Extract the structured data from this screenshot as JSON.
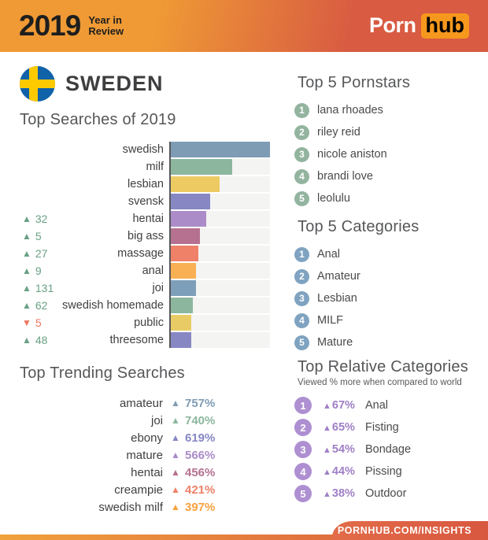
{
  "colors": {
    "header-left": "#ef9a35",
    "header-right": "#d85b42",
    "hub-box": "#f6981d",
    "flag-blue": "#1062a9",
    "flag-yellow": "#fdca00",
    "heading": "#565759",
    "label": "#3f3f41",
    "track": "#f4f4f3",
    "up": "#69a184",
    "down": "#ef745c",
    "rel-accent": "#9f7fc6",
    "strip-left": "#f0a23c",
    "strip-right": "#d8573f"
  },
  "icons": {
    "up": "▲",
    "down": "▼"
  },
  "header": {
    "year": "2019",
    "subtitle_line1": "Year in",
    "subtitle_line2": "Review",
    "logo_porn": "Porn",
    "logo_hub": "hub"
  },
  "country": {
    "name": "SWEDEN"
  },
  "top_searches": {
    "title": "Top Searches of 2019",
    "rows": [
      {
        "label": "swedish",
        "change": null,
        "change_dir": null,
        "value_pct": 100,
        "color": "#7f9cb5"
      },
      {
        "label": "milf",
        "change": null,
        "change_dir": null,
        "value_pct": 62,
        "color": "#8cb79e"
      },
      {
        "label": "lesbian",
        "change": null,
        "change_dir": null,
        "value_pct": 49,
        "color": "#edcb62"
      },
      {
        "label": "svensk",
        "change": null,
        "change_dir": null,
        "value_pct": 40,
        "color": "#8787c4"
      },
      {
        "label": "hentai",
        "change": "32",
        "change_dir": "up",
        "value_pct": 36,
        "color": "#ab8cc9"
      },
      {
        "label": "big ass",
        "change": "5",
        "change_dir": "up",
        "value_pct": 29,
        "color": "#b5718f"
      },
      {
        "label": "massage",
        "change": "27",
        "change_dir": "up",
        "value_pct": 28,
        "color": "#ee8168"
      },
      {
        "label": "anal",
        "change": "9",
        "change_dir": "up",
        "value_pct": 25,
        "color": "#f9b055"
      },
      {
        "label": "joi",
        "change": "131",
        "change_dir": "up",
        "value_pct": 25,
        "color": "#7e9fba"
      },
      {
        "label": "swedish homemade",
        "change": "62",
        "change_dir": "up",
        "value_pct": 22,
        "color": "#8cb79e"
      },
      {
        "label": "public",
        "change": "5",
        "change_dir": "down",
        "value_pct": 21,
        "color": "#e9cb66"
      },
      {
        "label": "threesome",
        "change": "48",
        "change_dir": "up",
        "value_pct": 21,
        "color": "#8787c4"
      }
    ]
  },
  "trending": {
    "title": "Top Trending Searches",
    "rows": [
      {
        "label": "amateur",
        "pct": "757%",
        "dir": "up",
        "color": "#7f9cb5"
      },
      {
        "label": "joi",
        "pct": "740%",
        "dir": "up",
        "color": "#8cb79e"
      },
      {
        "label": "ebony",
        "pct": "619%",
        "dir": "up",
        "color": "#8787c4"
      },
      {
        "label": "mature",
        "pct": "566%",
        "dir": "up",
        "color": "#ab8cc9"
      },
      {
        "label": "hentai",
        "pct": "456%",
        "dir": "up",
        "color": "#b5718f"
      },
      {
        "label": "creampie",
        "pct": "421%",
        "dir": "up",
        "color": "#ee8168"
      },
      {
        "label": "swedish milf",
        "pct": "397%",
        "dir": "up",
        "color": "#f8a13d"
      }
    ]
  },
  "pornstars": {
    "title": "Top 5 Pornstars",
    "badge_color": "#93b49f",
    "items": [
      {
        "rank": "1",
        "name": "lana rhoades"
      },
      {
        "rank": "2",
        "name": "riley reid"
      },
      {
        "rank": "3",
        "name": "nicole aniston"
      },
      {
        "rank": "4",
        "name": "brandi love"
      },
      {
        "rank": "5",
        "name": "leolulu"
      }
    ]
  },
  "categories": {
    "title": "Top 5 Categories",
    "badge_color": "#7fa3c0",
    "items": [
      {
        "rank": "1",
        "name": "Anal"
      },
      {
        "rank": "2",
        "name": "Amateur"
      },
      {
        "rank": "3",
        "name": "Lesbian"
      },
      {
        "rank": "4",
        "name": "MILF"
      },
      {
        "rank": "5",
        "name": "Mature"
      }
    ]
  },
  "relative": {
    "title": "Top Relative Categories",
    "subtitle": "Viewed % more when compared to world",
    "badge_color": "#ae8fd1",
    "items": [
      {
        "rank": "1",
        "pct": "67%",
        "dir": "up",
        "name": "Anal"
      },
      {
        "rank": "2",
        "pct": "65%",
        "dir": "up",
        "name": "Fisting"
      },
      {
        "rank": "3",
        "pct": "54%",
        "dir": "up",
        "name": "Bondage"
      },
      {
        "rank": "4",
        "pct": "44%",
        "dir": "up",
        "name": "Pissing"
      },
      {
        "rank": "5",
        "pct": "38%",
        "dir": "up",
        "name": "Outdoor"
      }
    ]
  },
  "footer": {
    "url": "PORNHUB.COM/INSIGHTS"
  },
  "chart_data": [
    {
      "type": "bar",
      "orientation": "horizontal",
      "title": "Top Searches of 2019",
      "categories": [
        "swedish",
        "milf",
        "lesbian",
        "svensk",
        "hentai",
        "big ass",
        "massage",
        "anal",
        "joi",
        "swedish homemade",
        "public",
        "threesome"
      ],
      "values": [
        100,
        62,
        49,
        40,
        36,
        29,
        28,
        25,
        25,
        22,
        21,
        21
      ],
      "value_note": "relative search volume, % of longest bar (estimated from pixel lengths)",
      "rank_change_yoy": [
        null,
        null,
        null,
        null,
        32,
        5,
        27,
        9,
        131,
        62,
        -5,
        48
      ],
      "bar_colors": [
        "#7f9cb5",
        "#8cb79e",
        "#edcb62",
        "#8787c4",
        "#ab8cc9",
        "#b5718f",
        "#ee8168",
        "#f9b055",
        "#7e9fba",
        "#8cb79e",
        "#e9cb66",
        "#8787c4"
      ],
      "xlim": [
        0,
        100
      ],
      "grid": false,
      "legend": false
    },
    {
      "type": "table",
      "title": "Top Trending Searches",
      "columns": [
        "search",
        "increase_pct"
      ],
      "rows": [
        [
          "amateur",
          757
        ],
        [
          "joi",
          740
        ],
        [
          "ebony",
          619
        ],
        [
          "mature",
          566
        ],
        [
          "hentai",
          456
        ],
        [
          "creampie",
          421
        ],
        [
          "swedish milf",
          397
        ]
      ]
    },
    {
      "type": "table",
      "title": "Top Relative Categories",
      "subtitle": "Viewed % more when compared to world",
      "columns": [
        "category",
        "pct_more_than_world"
      ],
      "rows": [
        [
          "Anal",
          67
        ],
        [
          "Fisting",
          65
        ],
        [
          "Bondage",
          54
        ],
        [
          "Pissing",
          44
        ],
        [
          "Outdoor",
          38
        ]
      ]
    }
  ]
}
